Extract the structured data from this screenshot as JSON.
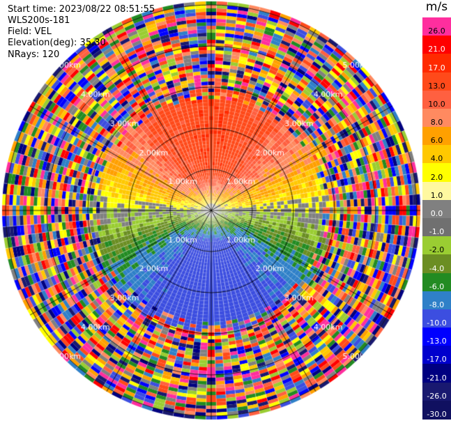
{
  "header": {
    "start_time": "Start time: 2023/08/22 08:51:55",
    "instrument": "WLS200s-181",
    "field": "Field: VEL",
    "elevation": "Elevation(deg): 35.30",
    "nrays": "NRays: 120"
  },
  "colorbar": {
    "unit": "m/s",
    "labels": [
      "26.0",
      "21.0",
      "17.0",
      "13.0",
      "10.0",
      "8.0",
      "6.0",
      "4.0",
      "2.0",
      "1.0",
      "0.0",
      "-1.0",
      "-2.0",
      "-4.0",
      "-6.0",
      "-8.0",
      "-10.0",
      "-13.0",
      "-17.0",
      "-21.0",
      "-26.0",
      "-30.0"
    ],
    "colors": [
      "#ff2e9e",
      "#ff0000",
      "#ff2a00",
      "#ff4a1a",
      "#ff6040",
      "#ff8a60",
      "#ffa000",
      "#ffc800",
      "#ffff00",
      "#fff8a0",
      "#808080",
      "#707070",
      "#9acd32",
      "#6b8e23",
      "#228b22",
      "#2f80c8",
      "#3c4ee0",
      "#0000ff",
      "#0000cd",
      "#000080",
      "#191970",
      "#101060"
    ]
  },
  "chart_data": {
    "type": "ppi-scan",
    "field": "VEL",
    "unit": "m/s",
    "nrays": 120,
    "elevation_deg": 35.3,
    "range_rings_km": [
      "1.00km",
      "2.00km",
      "3.00km",
      "4.00km",
      "5.00km"
    ],
    "value_levels": [
      26.0,
      21.0,
      17.0,
      13.0,
      10.0,
      8.0,
      6.0,
      4.0,
      2.0,
      1.0,
      0.0,
      -1.0,
      -2.0,
      -4.0,
      -6.0,
      -8.0,
      -10.0,
      -13.0,
      -17.0,
      -21.0,
      -26.0,
      -30.0
    ]
  }
}
